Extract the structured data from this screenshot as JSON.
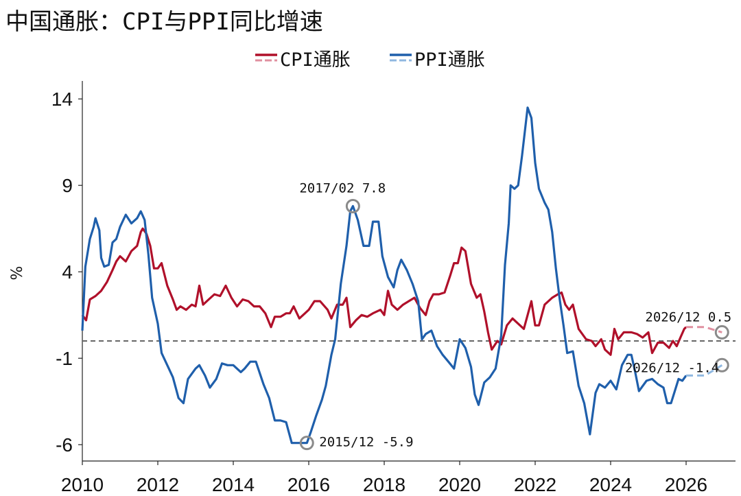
{
  "title": "中国通胀：CPI与PPI同比增速",
  "chart_data": {
    "type": "line",
    "ylabel": "%",
    "xlabel": "",
    "xlim": [
      2010,
      2027.4
    ],
    "ylim": [
      -7,
      15
    ],
    "yticks": [
      14,
      9,
      4,
      -1,
      -6
    ],
    "xticks": [
      2010,
      2012,
      2014,
      2016,
      2018,
      2020,
      2022,
      2024,
      2026
    ],
    "zero_line": 0,
    "legend_position": "top-center",
    "series": [
      {
        "name": "CPI通胀",
        "color": "#b0102a",
        "forecast_color": "#e090a0",
        "points": [
          [
            2010.0,
            1.5
          ],
          [
            2010.1,
            1.2
          ],
          [
            2010.2,
            2.4
          ],
          [
            2010.35,
            2.6
          ],
          [
            2010.5,
            2.9
          ],
          [
            2010.65,
            3.4
          ],
          [
            2010.8,
            4.1
          ],
          [
            2010.9,
            4.6
          ],
          [
            2011.0,
            4.9
          ],
          [
            2011.15,
            4.6
          ],
          [
            2011.3,
            5.2
          ],
          [
            2011.45,
            5.5
          ],
          [
            2011.55,
            6.3
          ],
          [
            2011.6,
            6.5
          ],
          [
            2011.7,
            6.2
          ],
          [
            2011.8,
            5.5
          ],
          [
            2011.9,
            4.2
          ],
          [
            2012.0,
            4.2
          ],
          [
            2012.1,
            4.5
          ],
          [
            2012.25,
            3.2
          ],
          [
            2012.4,
            2.4
          ],
          [
            2012.5,
            1.8
          ],
          [
            2012.6,
            2.0
          ],
          [
            2012.75,
            1.8
          ],
          [
            2012.9,
            2.1
          ],
          [
            2013.0,
            2.0
          ],
          [
            2013.1,
            3.2
          ],
          [
            2013.2,
            2.1
          ],
          [
            2013.35,
            2.4
          ],
          [
            2013.5,
            2.7
          ],
          [
            2013.65,
            2.6
          ],
          [
            2013.8,
            3.2
          ],
          [
            2013.95,
            2.5
          ],
          [
            2014.1,
            2.0
          ],
          [
            2014.25,
            2.4
          ],
          [
            2014.4,
            2.3
          ],
          [
            2014.55,
            2.0
          ],
          [
            2014.7,
            2.0
          ],
          [
            2014.85,
            1.6
          ],
          [
            2015.0,
            0.8
          ],
          [
            2015.1,
            1.4
          ],
          [
            2015.25,
            1.4
          ],
          [
            2015.4,
            1.6
          ],
          [
            2015.5,
            1.6
          ],
          [
            2015.6,
            2.0
          ],
          [
            2015.75,
            1.3
          ],
          [
            2015.9,
            1.6
          ],
          [
            2016.0,
            1.8
          ],
          [
            2016.15,
            2.3
          ],
          [
            2016.3,
            2.3
          ],
          [
            2016.5,
            1.8
          ],
          [
            2016.6,
            1.3
          ],
          [
            2016.75,
            2.1
          ],
          [
            2016.9,
            2.1
          ],
          [
            2017.0,
            2.5
          ],
          [
            2017.1,
            0.8
          ],
          [
            2017.25,
            1.2
          ],
          [
            2017.4,
            1.5
          ],
          [
            2017.55,
            1.4
          ],
          [
            2017.7,
            1.6
          ],
          [
            2017.9,
            1.8
          ],
          [
            2018.0,
            1.5
          ],
          [
            2018.1,
            2.9
          ],
          [
            2018.2,
            2.1
          ],
          [
            2018.35,
            1.8
          ],
          [
            2018.5,
            2.1
          ],
          [
            2018.65,
            2.3
          ],
          [
            2018.8,
            2.5
          ],
          [
            2018.95,
            1.9
          ],
          [
            2019.1,
            1.5
          ],
          [
            2019.2,
            2.3
          ],
          [
            2019.3,
            2.7
          ],
          [
            2019.45,
            2.7
          ],
          [
            2019.6,
            2.8
          ],
          [
            2019.75,
            3.8
          ],
          [
            2019.85,
            4.5
          ],
          [
            2019.95,
            4.5
          ],
          [
            2020.05,
            5.4
          ],
          [
            2020.15,
            5.2
          ],
          [
            2020.3,
            3.3
          ],
          [
            2020.45,
            2.5
          ],
          [
            2020.55,
            2.7
          ],
          [
            2020.65,
            1.7
          ],
          [
            2020.75,
            0.5
          ],
          [
            2020.85,
            -0.5
          ],
          [
            2021.0,
            0.0
          ],
          [
            2021.1,
            -0.2
          ],
          [
            2021.25,
            0.9
          ],
          [
            2021.4,
            1.3
          ],
          [
            2021.55,
            1.0
          ],
          [
            2021.7,
            0.7
          ],
          [
            2021.8,
            1.5
          ],
          [
            2021.9,
            2.3
          ],
          [
            2022.0,
            0.9
          ],
          [
            2022.1,
            0.9
          ],
          [
            2022.25,
            2.1
          ],
          [
            2022.45,
            2.5
          ],
          [
            2022.6,
            2.7
          ],
          [
            2022.7,
            2.8
          ],
          [
            2022.8,
            2.1
          ],
          [
            2022.9,
            1.8
          ],
          [
            2023.0,
            2.1
          ],
          [
            2023.15,
            0.7
          ],
          [
            2023.35,
            0.1
          ],
          [
            2023.5,
            0.0
          ],
          [
            2023.6,
            -0.3
          ],
          [
            2023.75,
            0.1
          ],
          [
            2023.85,
            -0.5
          ],
          [
            2024.0,
            -0.8
          ],
          [
            2024.1,
            0.7
          ],
          [
            2024.2,
            0.1
          ],
          [
            2024.35,
            0.5
          ],
          [
            2024.55,
            0.5
          ],
          [
            2024.7,
            0.4
          ],
          [
            2024.85,
            0.2
          ],
          [
            2025.0,
            0.5
          ],
          [
            2025.1,
            -0.7
          ],
          [
            2025.25,
            -0.1
          ],
          [
            2025.4,
            -0.1
          ],
          [
            2025.55,
            -0.4
          ],
          [
            2025.65,
            0.0
          ],
          [
            2025.75,
            -0.3
          ],
          [
            2025.85,
            0.2
          ],
          [
            2025.95,
            0.7
          ],
          [
            2026.0,
            0.8
          ]
        ],
        "forecast": [
          [
            2026.0,
            0.8
          ],
          [
            2026.5,
            0.8
          ],
          [
            2026.95,
            0.5
          ]
        ]
      },
      {
        "name": "PPI通胀",
        "color": "#1f5fab",
        "forecast_color": "#90b8e0",
        "points": [
          [
            2010.0,
            0.6
          ],
          [
            2010.08,
            4.3
          ],
          [
            2010.2,
            5.9
          ],
          [
            2010.3,
            6.6
          ],
          [
            2010.35,
            7.1
          ],
          [
            2010.45,
            6.4
          ],
          [
            2010.5,
            4.8
          ],
          [
            2010.58,
            4.3
          ],
          [
            2010.7,
            4.4
          ],
          [
            2010.8,
            5.7
          ],
          [
            2010.9,
            5.9
          ],
          [
            2011.0,
            6.6
          ],
          [
            2011.15,
            7.3
          ],
          [
            2011.3,
            6.8
          ],
          [
            2011.45,
            7.1
          ],
          [
            2011.55,
            7.5
          ],
          [
            2011.65,
            7.0
          ],
          [
            2011.75,
            5.0
          ],
          [
            2011.85,
            2.5
          ],
          [
            2012.0,
            1.0
          ],
          [
            2012.1,
            -0.7
          ],
          [
            2012.25,
            -1.4
          ],
          [
            2012.4,
            -2.1
          ],
          [
            2012.55,
            -3.3
          ],
          [
            2012.68,
            -3.6
          ],
          [
            2012.8,
            -2.2
          ],
          [
            2013.0,
            -1.6
          ],
          [
            2013.1,
            -1.4
          ],
          [
            2013.25,
            -2.0
          ],
          [
            2013.38,
            -2.7
          ],
          [
            2013.55,
            -2.2
          ],
          [
            2013.7,
            -1.3
          ],
          [
            2013.85,
            -1.4
          ],
          [
            2014.0,
            -1.4
          ],
          [
            2014.2,
            -1.8
          ],
          [
            2014.3,
            -1.6
          ],
          [
            2014.45,
            -1.2
          ],
          [
            2014.6,
            -1.2
          ],
          [
            2014.8,
            -2.5
          ],
          [
            2014.95,
            -3.3
          ],
          [
            2015.1,
            -4.6
          ],
          [
            2015.25,
            -4.6
          ],
          [
            2015.4,
            -4.7
          ],
          [
            2015.55,
            -5.9
          ],
          [
            2015.7,
            -5.9
          ],
          [
            2015.95,
            -5.9
          ],
          [
            2016.05,
            -5.3
          ],
          [
            2016.2,
            -4.3
          ],
          [
            2016.35,
            -3.4
          ],
          [
            2016.45,
            -2.6
          ],
          [
            2016.6,
            -0.8
          ],
          [
            2016.7,
            0.1
          ],
          [
            2016.85,
            3.3
          ],
          [
            2017.0,
            5.5
          ],
          [
            2017.1,
            7.5
          ],
          [
            2017.17,
            7.8
          ],
          [
            2017.3,
            7.0
          ],
          [
            2017.45,
            5.5
          ],
          [
            2017.6,
            5.5
          ],
          [
            2017.7,
            6.9
          ],
          [
            2017.85,
            6.9
          ],
          [
            2017.95,
            4.9
          ],
          [
            2018.1,
            3.7
          ],
          [
            2018.25,
            3.1
          ],
          [
            2018.35,
            4.1
          ],
          [
            2018.45,
            4.7
          ],
          [
            2018.6,
            4.1
          ],
          [
            2018.75,
            3.3
          ],
          [
            2018.9,
            2.3
          ],
          [
            2019.0,
            0.1
          ],
          [
            2019.1,
            0.4
          ],
          [
            2019.25,
            0.6
          ],
          [
            2019.4,
            -0.3
          ],
          [
            2019.55,
            -0.8
          ],
          [
            2019.7,
            -1.2
          ],
          [
            2019.85,
            -1.6
          ],
          [
            2020.0,
            0.1
          ],
          [
            2020.15,
            -0.4
          ],
          [
            2020.3,
            -1.5
          ],
          [
            2020.4,
            -3.1
          ],
          [
            2020.5,
            -3.7
          ],
          [
            2020.65,
            -2.4
          ],
          [
            2020.8,
            -2.1
          ],
          [
            2020.95,
            -1.6
          ],
          [
            2021.1,
            0.3
          ],
          [
            2021.2,
            4.4
          ],
          [
            2021.3,
            6.8
          ],
          [
            2021.35,
            9.0
          ],
          [
            2021.45,
            8.8
          ],
          [
            2021.55,
            9.0
          ],
          [
            2021.65,
            10.7
          ],
          [
            2021.8,
            13.5
          ],
          [
            2021.9,
            12.9
          ],
          [
            2022.0,
            10.3
          ],
          [
            2022.1,
            8.8
          ],
          [
            2022.25,
            8.0
          ],
          [
            2022.35,
            7.6
          ],
          [
            2022.45,
            6.3
          ],
          [
            2022.55,
            4.2
          ],
          [
            2022.65,
            2.4
          ],
          [
            2022.75,
            0.9
          ],
          [
            2022.85,
            -0.7
          ],
          [
            2023.0,
            -0.6
          ],
          [
            2023.15,
            -2.6
          ],
          [
            2023.3,
            -3.6
          ],
          [
            2023.45,
            -5.4
          ],
          [
            2023.6,
            -3.0
          ],
          [
            2023.7,
            -2.5
          ],
          [
            2023.85,
            -2.7
          ],
          [
            2024.0,
            -2.3
          ],
          [
            2024.15,
            -2.8
          ],
          [
            2024.3,
            -1.4
          ],
          [
            2024.45,
            -0.8
          ],
          [
            2024.55,
            -0.8
          ],
          [
            2024.65,
            -1.8
          ],
          [
            2024.75,
            -2.9
          ],
          [
            2024.95,
            -2.3
          ],
          [
            2025.1,
            -2.2
          ],
          [
            2025.25,
            -2.5
          ],
          [
            2025.4,
            -2.7
          ],
          [
            2025.5,
            -3.6
          ],
          [
            2025.6,
            -3.6
          ],
          [
            2025.7,
            -2.9
          ],
          [
            2025.8,
            -2.2
          ],
          [
            2025.9,
            -2.3
          ],
          [
            2026.0,
            -2.0
          ]
        ],
        "forecast": [
          [
            2026.0,
            -2.0
          ],
          [
            2026.5,
            -2.0
          ],
          [
            2026.95,
            -1.4
          ]
        ]
      }
    ],
    "annotations": [
      {
        "text": "2017/02 7.8",
        "x": 2017.17,
        "y": 7.8,
        "label_side": "above"
      },
      {
        "text": "2015/12 -5.9",
        "x": 2015.95,
        "y": -5.9,
        "label_side": "right"
      },
      {
        "text": "2026/12 0.5",
        "x": 2026.95,
        "y": 0.5,
        "label_side": "above-left"
      },
      {
        "text": "2026/12 -1.4",
        "x": 2026.95,
        "y": -1.4,
        "label_side": "left"
      }
    ]
  }
}
